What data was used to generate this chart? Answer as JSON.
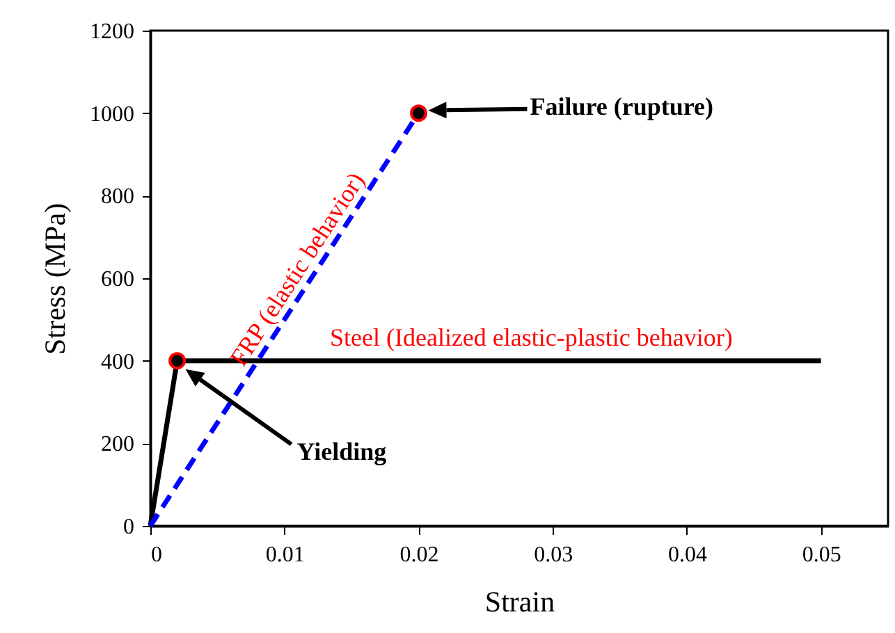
{
  "chart_data": {
    "type": "line",
    "xlabel": "Strain",
    "ylabel": "Stress (MPa)",
    "xlim": [
      0,
      0.055
    ],
    "ylim": [
      0,
      1200
    ],
    "xticks": [
      0,
      0.01,
      0.02,
      0.03,
      0.04,
      0.05
    ],
    "yticks": [
      0,
      200,
      400,
      600,
      800,
      1000,
      1200
    ],
    "series": [
      {
        "name": "Steel (Idealized elastic-plastic behavior)",
        "color": "#000000",
        "line_style": "solid",
        "x": [
          0,
          0.002,
          0.05
        ],
        "values": [
          0,
          400,
          400
        ]
      },
      {
        "name": "FRP (elastic behavior)",
        "color": "#0000ff",
        "line_style": "dashed",
        "x": [
          0,
          0.02
        ],
        "values": [
          0,
          1000
        ]
      },
      {
        "type": "scatter",
        "color": "#000000",
        "marker": "circle",
        "x": [
          0.002,
          0.02
        ],
        "values": [
          400,
          1000
        ]
      }
    ],
    "annotations": [
      "Failure (rupture)",
      "Yielding"
    ]
  }
}
